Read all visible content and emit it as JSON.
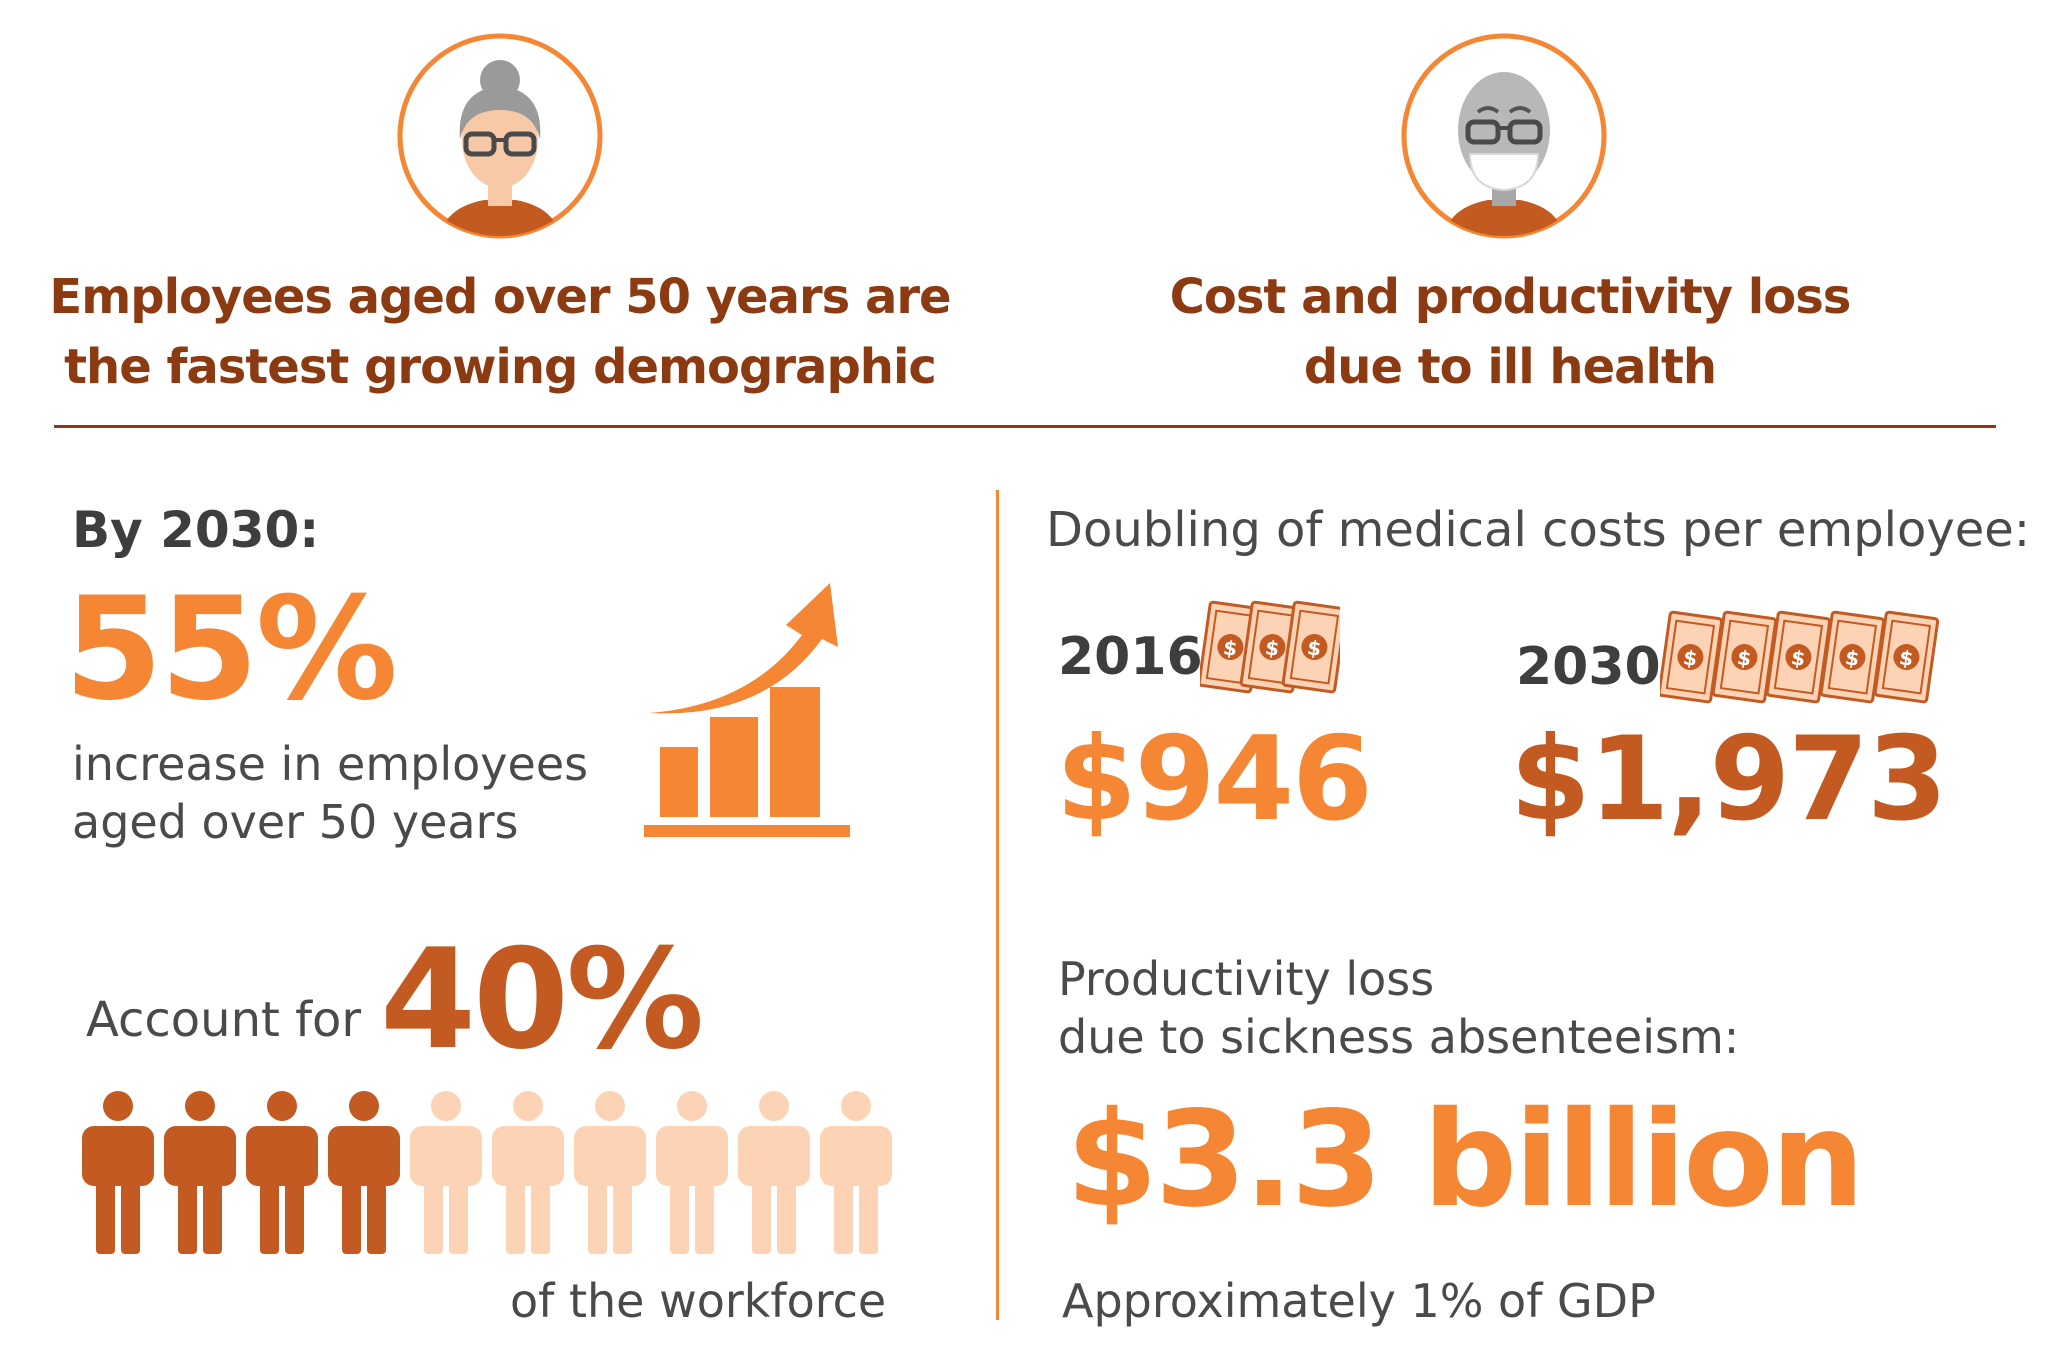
{
  "left": {
    "heading_line1": "Employees aged over 50 years are",
    "heading_line2": "the fastest growing demographic",
    "by_label": "By 2030:",
    "increase_value": "55%",
    "increase_line1": "increase in employees",
    "increase_line2": "aged over 50 years",
    "account_label": "Account for",
    "account_value": "40%",
    "workforce_label": "of the workforce",
    "workforce_share": 0.4,
    "people_total": 10,
    "people_highlighted": 4
  },
  "right": {
    "heading_line1": "Cost and productivity loss",
    "heading_line2": "due to ill health",
    "doubling_label": "Doubling of medical costs per employee:",
    "year_a": "2016",
    "value_a": "$946",
    "year_b": "2030",
    "value_b": "$1,973",
    "productivity_line1": "Productivity loss",
    "productivity_line2": "due to sickness absenteeism:",
    "loss_value": "$3.3 billion",
    "gdp_note": "Approximately 1% of GDP"
  },
  "icons": {
    "avatar_left": "older-woman-with-glasses-icon",
    "avatar_right": "sick-person-with-mask-icon",
    "growth_chart": "bar-chart-arrow-up-icon",
    "person": "person-icon",
    "banknote": "dollar-banknote-icon"
  },
  "colors": {
    "accent_orange": "#f48634",
    "rust": "#c35a22",
    "dark_brown": "#8b3a12",
    "light_peach": "#fdd3b6",
    "text_gray": "#4a4a4a"
  }
}
